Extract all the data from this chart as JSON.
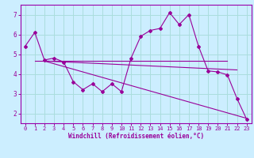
{
  "title": "",
  "xlabel": "Windchill (Refroidissement éolien,°C)",
  "ylabel": "",
  "bg_color": "#cceeff",
  "line_color": "#990099",
  "grid_color": "#aadddd",
  "spine_color": "#9900aa",
  "xlim": [
    -0.5,
    23.5
  ],
  "ylim": [
    1.5,
    7.5
  ],
  "yticks": [
    2,
    3,
    4,
    5,
    6,
    7
  ],
  "xticks": [
    0,
    1,
    2,
    3,
    4,
    5,
    6,
    7,
    8,
    9,
    10,
    11,
    12,
    13,
    14,
    15,
    16,
    17,
    18,
    19,
    20,
    21,
    22,
    23
  ],
  "main_x": [
    0,
    1,
    2,
    3,
    4,
    5,
    6,
    7,
    8,
    9,
    10,
    11,
    12,
    13,
    14,
    15,
    16,
    17,
    18,
    19,
    20,
    21,
    22,
    23
  ],
  "main_y": [
    5.4,
    6.1,
    4.7,
    4.8,
    4.6,
    3.6,
    3.2,
    3.5,
    3.1,
    3.5,
    3.1,
    4.8,
    5.9,
    6.2,
    6.3,
    7.1,
    6.5,
    7.0,
    5.4,
    4.15,
    4.1,
    3.95,
    2.75,
    1.7
  ],
  "trend1_x": [
    1,
    21
  ],
  "trend1_y": [
    4.65,
    4.65
  ],
  "trend2_x": [
    2,
    22
  ],
  "trend2_y": [
    4.65,
    4.2
  ],
  "trend3_x": [
    2,
    23
  ],
  "trend3_y": [
    4.65,
    1.75
  ],
  "tick_fontsize": 5.0,
  "xlabel_fontsize": 5.5
}
